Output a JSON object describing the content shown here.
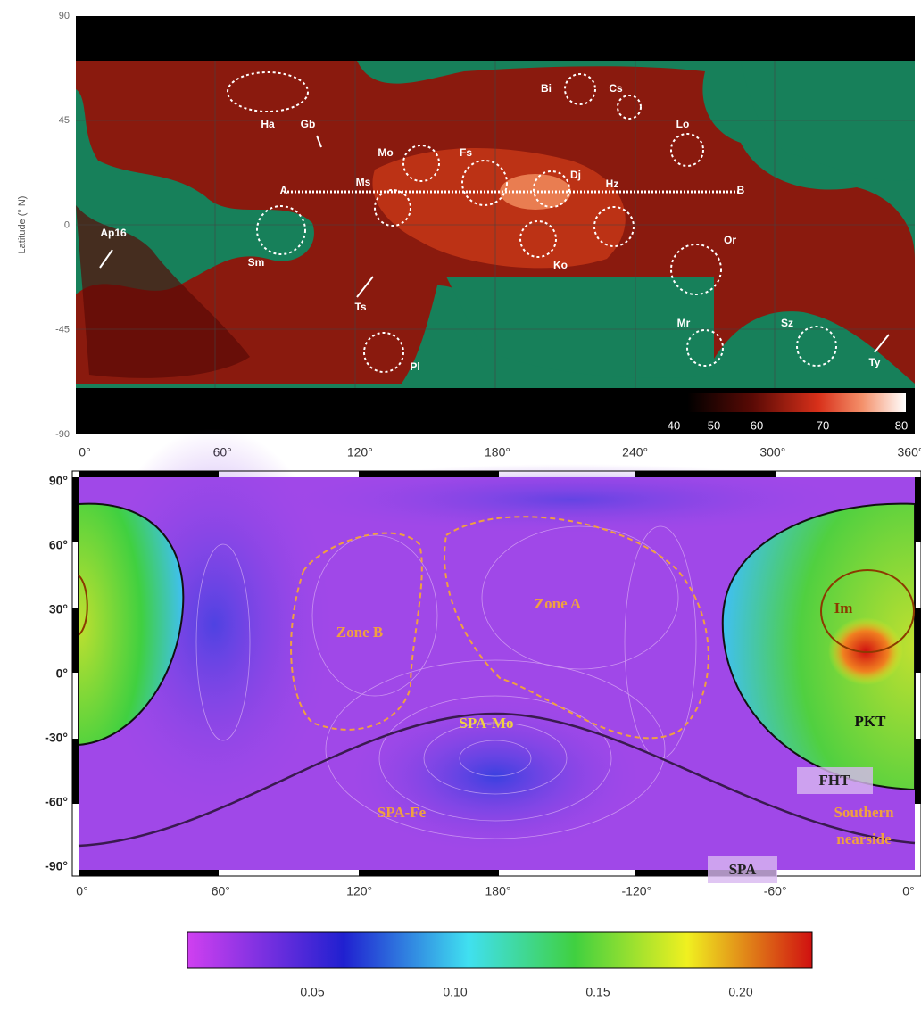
{
  "top_panel": {
    "y_axis_label": "Latitude (° N)",
    "y_ticks": [
      "90",
      "45",
      "0",
      "-45",
      "-90"
    ],
    "x_ticks": [
      "0°",
      "60°",
      "120°",
      "180°",
      "240°",
      "300°",
      "360°"
    ],
    "colorbar_ticks": [
      "40",
      "50",
      "60",
      "70",
      "80"
    ],
    "regions": [
      "Ha",
      "Gb",
      "Mo",
      "Fs",
      "Bi",
      "Cs",
      "Lo",
      "Dj",
      "Hz",
      "Ms",
      "Ap16",
      "Sm",
      "Ts",
      "Ko",
      "Or",
      "Mr",
      "Sz",
      "Ty",
      "Pl"
    ],
    "profile_ends": [
      "A",
      "B"
    ]
  },
  "bottom_panel": {
    "y_ticks": [
      "90°",
      "60°",
      "30°",
      "0°",
      "-30°",
      "-60°",
      "-90°"
    ],
    "x_ticks": [
      "0°",
      "60°",
      "120°",
      "180°",
      "-120°",
      "-60°",
      "0°"
    ],
    "labels": [
      "Zone A",
      "Zone B",
      "SPA-Mo",
      "SPA-Fe",
      "Im",
      "PKT",
      "FHT",
      "Southern",
      "nearside",
      "SPA"
    ],
    "colorbar_ticks": [
      "0.05",
      "0.10",
      "0.15",
      "0.20"
    ]
  }
}
